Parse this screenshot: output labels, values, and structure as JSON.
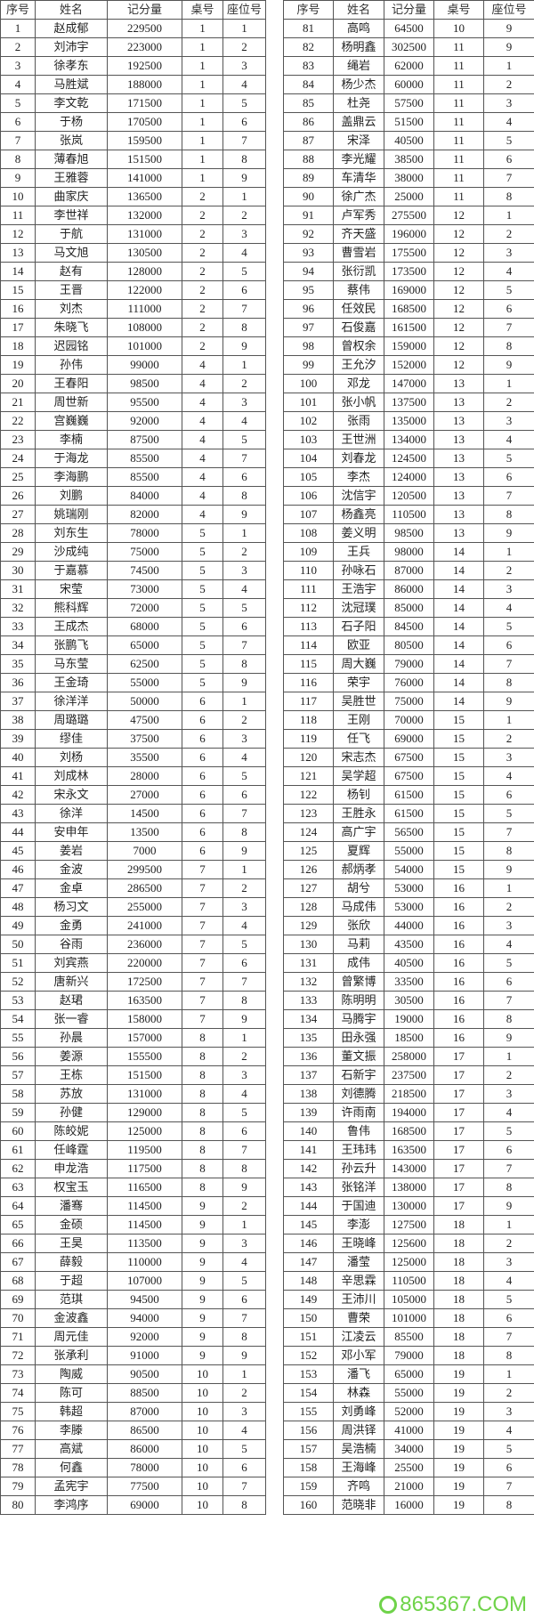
{
  "headers": [
    "序号",
    "姓名",
    "记分量",
    "桌号",
    "座位号"
  ],
  "rows_left": [
    [
      "1",
      "赵成郁",
      "229500",
      "1",
      "1"
    ],
    [
      "2",
      "刘沛宇",
      "223000",
      "1",
      "2"
    ],
    [
      "3",
      "徐孝东",
      "192500",
      "1",
      "3"
    ],
    [
      "4",
      "马胜斌",
      "188000",
      "1",
      "4"
    ],
    [
      "5",
      "李文乾",
      "171500",
      "1",
      "5"
    ],
    [
      "6",
      "于杨",
      "170500",
      "1",
      "6"
    ],
    [
      "7",
      "张岚",
      "159500",
      "1",
      "7"
    ],
    [
      "8",
      "薄春旭",
      "151500",
      "1",
      "8"
    ],
    [
      "9",
      "王雅蓉",
      "141000",
      "1",
      "9"
    ],
    [
      "10",
      "曲家庆",
      "136500",
      "2",
      "1"
    ],
    [
      "11",
      "李世祥",
      "132000",
      "2",
      "2"
    ],
    [
      "12",
      "于航",
      "131000",
      "2",
      "3"
    ],
    [
      "13",
      "马文旭",
      "130500",
      "2",
      "4"
    ],
    [
      "14",
      "赵有",
      "128000",
      "2",
      "5"
    ],
    [
      "15",
      "王晋",
      "122000",
      "2",
      "6"
    ],
    [
      "16",
      "刘杰",
      "111000",
      "2",
      "7"
    ],
    [
      "17",
      "朱晓飞",
      "108000",
      "2",
      "8"
    ],
    [
      "18",
      "迟园铭",
      "101000",
      "2",
      "9"
    ],
    [
      "19",
      "孙伟",
      "99000",
      "4",
      "1"
    ],
    [
      "20",
      "王春阳",
      "98500",
      "4",
      "2"
    ],
    [
      "21",
      "周世新",
      "95500",
      "4",
      "3"
    ],
    [
      "22",
      "宫巍巍",
      "92000",
      "4",
      "4"
    ],
    [
      "23",
      "李楠",
      "87500",
      "4",
      "5"
    ],
    [
      "24",
      "于海龙",
      "85500",
      "4",
      "7"
    ],
    [
      "25",
      "李海鹏",
      "85500",
      "4",
      "6"
    ],
    [
      "26",
      "刘鹏",
      "84000",
      "4",
      "8"
    ],
    [
      "27",
      "姚瑞刚",
      "82000",
      "4",
      "9"
    ],
    [
      "28",
      "刘东生",
      "78000",
      "5",
      "1"
    ],
    [
      "29",
      "沙成纯",
      "75000",
      "5",
      "2"
    ],
    [
      "30",
      "于嘉慕",
      "74500",
      "5",
      "3"
    ],
    [
      "31",
      "宋莹",
      "73000",
      "5",
      "4"
    ],
    [
      "32",
      "熊科辉",
      "72000",
      "5",
      "5"
    ],
    [
      "33",
      "王成杰",
      "68000",
      "5",
      "6"
    ],
    [
      "34",
      "张鹏飞",
      "65000",
      "5",
      "7"
    ],
    [
      "35",
      "马东莹",
      "62500",
      "5",
      "8"
    ],
    [
      "36",
      "王金琦",
      "55000",
      "5",
      "9"
    ],
    [
      "37",
      "徐洋洋",
      "50000",
      "6",
      "1"
    ],
    [
      "38",
      "周璐璐",
      "47500",
      "6",
      "2"
    ],
    [
      "39",
      "缪佳",
      "37500",
      "6",
      "3"
    ],
    [
      "40",
      "刘杨",
      "35500",
      "6",
      "4"
    ],
    [
      "41",
      "刘成林",
      "28000",
      "6",
      "5"
    ],
    [
      "42",
      "宋永文",
      "27000",
      "6",
      "6"
    ],
    [
      "43",
      "徐洋",
      "14500",
      "6",
      "7"
    ],
    [
      "44",
      "安申年",
      "13500",
      "6",
      "8"
    ],
    [
      "45",
      "姜岩",
      "7000",
      "6",
      "9"
    ],
    [
      "46",
      "金波",
      "299500",
      "7",
      "1"
    ],
    [
      "47",
      "金卓",
      "286500",
      "7",
      "2"
    ],
    [
      "48",
      "杨习文",
      "255000",
      "7",
      "3"
    ],
    [
      "49",
      "金勇",
      "241000",
      "7",
      "4"
    ],
    [
      "50",
      "谷雨",
      "236000",
      "7",
      "5"
    ],
    [
      "51",
      "刘宾燕",
      "220000",
      "7",
      "6"
    ],
    [
      "52",
      "唐新兴",
      "172500",
      "7",
      "7"
    ],
    [
      "53",
      "赵珺",
      "163500",
      "7",
      "8"
    ],
    [
      "54",
      "张一睿",
      "158000",
      "7",
      "9"
    ],
    [
      "55",
      "孙晨",
      "157000",
      "8",
      "1"
    ],
    [
      "56",
      "姜源",
      "155500",
      "8",
      "2"
    ],
    [
      "57",
      "王栋",
      "151500",
      "8",
      "3"
    ],
    [
      "58",
      "苏放",
      "131000",
      "8",
      "4"
    ],
    [
      "59",
      "孙健",
      "129000",
      "8",
      "5"
    ],
    [
      "60",
      "陈皎妮",
      "125000",
      "8",
      "6"
    ],
    [
      "61",
      "任峰霆",
      "119500",
      "8",
      "7"
    ],
    [
      "62",
      "申龙浩",
      "117500",
      "8",
      "8"
    ],
    [
      "63",
      "权宝玉",
      "116500",
      "8",
      "9"
    ],
    [
      "64",
      "潘骞",
      "114500",
      "9",
      "2"
    ],
    [
      "65",
      "金硕",
      "114500",
      "9",
      "1"
    ],
    [
      "66",
      "王昊",
      "113500",
      "9",
      "3"
    ],
    [
      "67",
      "薛毅",
      "110000",
      "9",
      "4"
    ],
    [
      "68",
      "于超",
      "107000",
      "9",
      "5"
    ],
    [
      "69",
      "范琪",
      "94500",
      "9",
      "6"
    ],
    [
      "70",
      "金波鑫",
      "94000",
      "9",
      "7"
    ],
    [
      "71",
      "周元佳",
      "92000",
      "9",
      "8"
    ],
    [
      "72",
      "张承利",
      "91000",
      "9",
      "9"
    ],
    [
      "73",
      "陶威",
      "90500",
      "10",
      "1"
    ],
    [
      "74",
      "陈可",
      "88500",
      "10",
      "2"
    ],
    [
      "75",
      "韩超",
      "87000",
      "10",
      "3"
    ],
    [
      "76",
      "李滕",
      "86500",
      "10",
      "4"
    ],
    [
      "77",
      "高斌",
      "86000",
      "10",
      "5"
    ],
    [
      "78",
      "何鑫",
      "78000",
      "10",
      "6"
    ],
    [
      "79",
      "孟宪宇",
      "77500",
      "10",
      "7"
    ],
    [
      "80",
      "李鸿序",
      "69000",
      "10",
      "8"
    ]
  ],
  "rows_right": [
    [
      "81",
      "高鸣",
      "64500",
      "10",
      "9"
    ],
    [
      "82",
      "杨明鑫",
      "302500",
      "11",
      "9"
    ],
    [
      "83",
      "绳岩",
      "62000",
      "11",
      "1"
    ],
    [
      "84",
      "杨少杰",
      "60000",
      "11",
      "2"
    ],
    [
      "85",
      "杜尧",
      "57500",
      "11",
      "3"
    ],
    [
      "86",
      "盖鼎云",
      "51500",
      "11",
      "4"
    ],
    [
      "87",
      "宋泽",
      "40500",
      "11",
      "5"
    ],
    [
      "88",
      "李光耀",
      "38500",
      "11",
      "6"
    ],
    [
      "89",
      "车清华",
      "38000",
      "11",
      "7"
    ],
    [
      "90",
      "徐广杰",
      "25000",
      "11",
      "8"
    ],
    [
      "91",
      "卢军秀",
      "275500",
      "12",
      "1"
    ],
    [
      "92",
      "齐天盛",
      "196000",
      "12",
      "2"
    ],
    [
      "93",
      "曹雪岩",
      "175500",
      "12",
      "3"
    ],
    [
      "94",
      "张衍凯",
      "173500",
      "12",
      "4"
    ],
    [
      "95",
      "蔡伟",
      "169000",
      "12",
      "5"
    ],
    [
      "96",
      "任效民",
      "168500",
      "12",
      "6"
    ],
    [
      "97",
      "石俊嘉",
      "161500",
      "12",
      "7"
    ],
    [
      "98",
      "曾权余",
      "159000",
      "12",
      "8"
    ],
    [
      "99",
      "王允汐",
      "152000",
      "12",
      "9"
    ],
    [
      "100",
      "邓龙",
      "147000",
      "13",
      "1"
    ],
    [
      "101",
      "张小帆",
      "137500",
      "13",
      "2"
    ],
    [
      "102",
      "张雨",
      "135000",
      "13",
      "3"
    ],
    [
      "103",
      "王世洲",
      "134000",
      "13",
      "4"
    ],
    [
      "104",
      "刘春龙",
      "124500",
      "13",
      "5"
    ],
    [
      "105",
      "李杰",
      "124000",
      "13",
      "6"
    ],
    [
      "106",
      "沈信宇",
      "120500",
      "13",
      "7"
    ],
    [
      "107",
      "杨鑫亮",
      "110500",
      "13",
      "8"
    ],
    [
      "108",
      "姜义明",
      "98500",
      "13",
      "9"
    ],
    [
      "109",
      "王兵",
      "98000",
      "14",
      "1"
    ],
    [
      "110",
      "孙咏石",
      "87000",
      "14",
      "2"
    ],
    [
      "111",
      "王浩宇",
      "86000",
      "14",
      "3"
    ],
    [
      "112",
      "沈冠璞",
      "85000",
      "14",
      "4"
    ],
    [
      "113",
      "石子阳",
      "84500",
      "14",
      "5"
    ],
    [
      "114",
      "欧亚",
      "80500",
      "14",
      "6"
    ],
    [
      "115",
      "周大巍",
      "79000",
      "14",
      "7"
    ],
    [
      "116",
      "荣宇",
      "76000",
      "14",
      "8"
    ],
    [
      "117",
      "吴胜世",
      "75000",
      "14",
      "9"
    ],
    [
      "118",
      "王刚",
      "70000",
      "15",
      "1"
    ],
    [
      "119",
      "任飞",
      "69000",
      "15",
      "2"
    ],
    [
      "120",
      "宋志杰",
      "67500",
      "15",
      "3"
    ],
    [
      "121",
      "吴学超",
      "67500",
      "15",
      "4"
    ],
    [
      "122",
      "杨钊",
      "61500",
      "15",
      "6"
    ],
    [
      "123",
      "王胜永",
      "61500",
      "15",
      "5"
    ],
    [
      "124",
      "高广宇",
      "56500",
      "15",
      "7"
    ],
    [
      "125",
      "夏辉",
      "55000",
      "15",
      "8"
    ],
    [
      "126",
      "郝炳孝",
      "54000",
      "15",
      "9"
    ],
    [
      "127",
      "胡兮",
      "53000",
      "16",
      "1"
    ],
    [
      "128",
      "马成伟",
      "53000",
      "16",
      "2"
    ],
    [
      "129",
      "张欣",
      "44000",
      "16",
      "3"
    ],
    [
      "130",
      "马莉",
      "43500",
      "16",
      "4"
    ],
    [
      "131",
      "成伟",
      "40500",
      "16",
      "5"
    ],
    [
      "132",
      "曾繁博",
      "33500",
      "16",
      "6"
    ],
    [
      "133",
      "陈明明",
      "30500",
      "16",
      "7"
    ],
    [
      "134",
      "马腾宇",
      "19000",
      "16",
      "8"
    ],
    [
      "135",
      "田永强",
      "18500",
      "16",
      "9"
    ],
    [
      "136",
      "董文振",
      "258000",
      "17",
      "1"
    ],
    [
      "137",
      "石新宇",
      "237500",
      "17",
      "2"
    ],
    [
      "138",
      "刘德腾",
      "218500",
      "17",
      "3"
    ],
    [
      "139",
      "许雨南",
      "194000",
      "17",
      "4"
    ],
    [
      "140",
      "鲁伟",
      "168500",
      "17",
      "5"
    ],
    [
      "141",
      "王玮玮",
      "163500",
      "17",
      "6"
    ],
    [
      "142",
      "孙云升",
      "143000",
      "17",
      "7"
    ],
    [
      "143",
      "张铭洋",
      "138000",
      "17",
      "8"
    ],
    [
      "144",
      "于国迪",
      "130000",
      "17",
      "9"
    ],
    [
      "145",
      "李澎",
      "127500",
      "18",
      "1"
    ],
    [
      "146",
      "王晓峰",
      "125600",
      "18",
      "2"
    ],
    [
      "147",
      "潘莹",
      "125000",
      "18",
      "3"
    ],
    [
      "148",
      "辛思霖",
      "110500",
      "18",
      "4"
    ],
    [
      "149",
      "王沛川",
      "105000",
      "18",
      "5"
    ],
    [
      "150",
      "曹荣",
      "101000",
      "18",
      "6"
    ],
    [
      "151",
      "江凌云",
      "85500",
      "18",
      "7"
    ],
    [
      "152",
      "邓小军",
      "79000",
      "18",
      "8"
    ],
    [
      "153",
      "潘飞",
      "65000",
      "19",
      "1"
    ],
    [
      "154",
      "林森",
      "55000",
      "19",
      "2"
    ],
    [
      "155",
      "刘勇峰",
      "52000",
      "19",
      "3"
    ],
    [
      "156",
      "周洪铎",
      "41000",
      "19",
      "4"
    ],
    [
      "157",
      "吴浩楠",
      "34000",
      "19",
      "5"
    ],
    [
      "158",
      "王海峰",
      "25500",
      "19",
      "6"
    ],
    [
      "159",
      "齐鸣",
      "21000",
      "19",
      "7"
    ],
    [
      "160",
      "范晓非",
      "16000",
      "19",
      "8"
    ]
  ],
  "watermark": {
    "text": "865367.COM",
    "color": "#6fd34a"
  }
}
